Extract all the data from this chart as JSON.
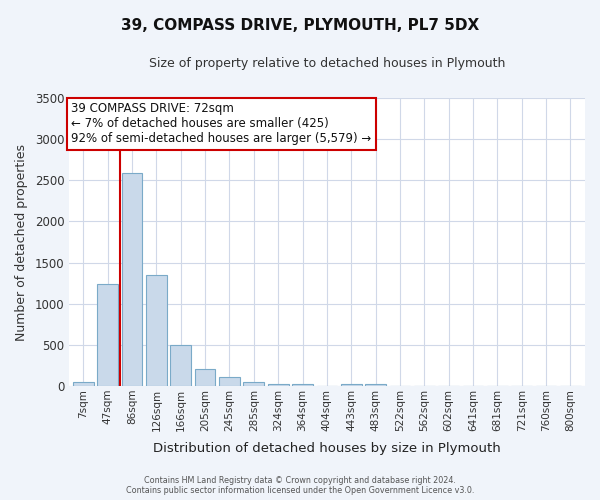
{
  "title": "39, COMPASS DRIVE, PLYMOUTH, PL7 5DX",
  "subtitle": "Size of property relative to detached houses in Plymouth",
  "xlabel": "Distribution of detached houses by size in Plymouth",
  "ylabel": "Number of detached properties",
  "bar_labels": [
    "7sqm",
    "47sqm",
    "86sqm",
    "126sqm",
    "166sqm",
    "205sqm",
    "245sqm",
    "285sqm",
    "324sqm",
    "364sqm",
    "404sqm",
    "443sqm",
    "483sqm",
    "522sqm",
    "562sqm",
    "602sqm",
    "641sqm",
    "681sqm",
    "721sqm",
    "760sqm",
    "800sqm"
  ],
  "bar_values": [
    45,
    1240,
    2590,
    1345,
    495,
    205,
    110,
    45,
    30,
    20,
    0,
    25,
    20,
    0,
    0,
    0,
    0,
    0,
    0,
    0,
    0
  ],
  "bar_color": "#c9d9ea",
  "bar_edge_color": "#7aaac8",
  "plot_bg_color": "#ffffff",
  "fig_bg_color": "#f0f4fa",
  "grid_color": "#d0d8e8",
  "vline_color": "#cc0000",
  "annotation_line1": "39 COMPASS DRIVE: 72sqm",
  "annotation_line2": "← 7% of detached houses are smaller (425)",
  "annotation_line3": "92% of semi-detached houses are larger (5,579) →",
  "annotation_box_facecolor": "#ffffff",
  "annotation_box_edgecolor": "#cc0000",
  "ylim": [
    0,
    3500
  ],
  "yticks": [
    0,
    500,
    1000,
    1500,
    2000,
    2500,
    3000,
    3500
  ],
  "footer_line1": "Contains HM Land Registry data © Crown copyright and database right 2024.",
  "footer_line2": "Contains public sector information licensed under the Open Government Licence v3.0."
}
